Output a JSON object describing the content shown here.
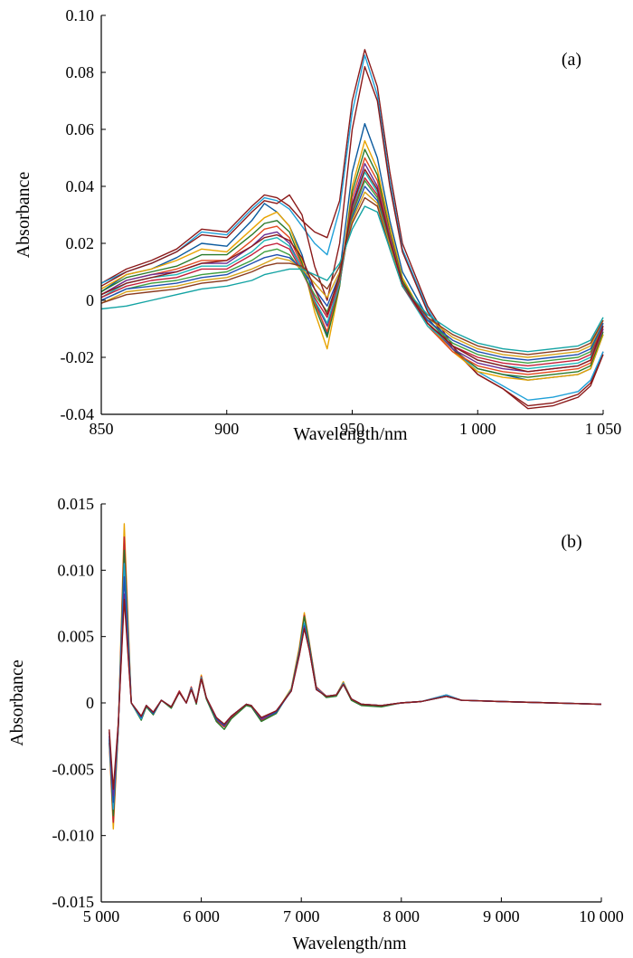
{
  "chart_data": [
    {
      "type": "line",
      "panel_label": "(a)",
      "xlabel": "Wavelength/nm",
      "ylabel": "Absorbance",
      "xlim": [
        850,
        1050
      ],
      "ylim": [
        -0.04,
        0.1
      ],
      "xticks": [
        850,
        900,
        950,
        1000,
        1050
      ],
      "xtick_labels": [
        "850",
        "900",
        "950",
        "1 000",
        "1 050"
      ],
      "yticks": [
        -0.04,
        -0.02,
        0,
        0.02,
        0.04,
        0.06,
        0.08,
        0.1
      ],
      "ytick_labels": [
        "-0.04",
        "-0.02",
        "0",
        "0.02",
        "0.04",
        "0.06",
        "0.08",
        "0.10"
      ],
      "grid": false,
      "legend": "none",
      "x": [
        850,
        860,
        870,
        880,
        890,
        900,
        910,
        915,
        920,
        925,
        930,
        935,
        940,
        945,
        950,
        955,
        960,
        965,
        970,
        980,
        990,
        1000,
        1010,
        1020,
        1030,
        1040,
        1045,
        1050
      ],
      "series": [
        {
          "color": "#8b1a1a",
          "values": [
            0.006,
            0.011,
            0.014,
            0.018,
            0.025,
            0.024,
            0.033,
            0.037,
            0.036,
            0.033,
            0.028,
            0.024,
            0.022,
            0.035,
            0.07,
            0.088,
            0.075,
            0.045,
            0.02,
            -0.002,
            -0.016,
            -0.026,
            -0.031,
            -0.037,
            -0.036,
            -0.033,
            -0.029,
            -0.018
          ]
        },
        {
          "color": "#1fa0d8",
          "values": [
            0.006,
            0.01,
            0.013,
            0.017,
            0.024,
            0.023,
            0.032,
            0.036,
            0.035,
            0.032,
            0.026,
            0.02,
            0.016,
            0.032,
            0.066,
            0.086,
            0.072,
            0.042,
            0.018,
            -0.003,
            -0.017,
            -0.025,
            -0.03,
            -0.035,
            -0.034,
            -0.032,
            -0.028,
            -0.018
          ]
        },
        {
          "color": "#8b1a1a",
          "values": [
            0.005,
            0.01,
            0.013,
            0.017,
            0.023,
            0.022,
            0.031,
            0.035,
            0.034,
            0.037,
            0.03,
            0.012,
            0.0,
            0.02,
            0.06,
            0.082,
            0.07,
            0.04,
            0.017,
            -0.004,
            -0.017,
            -0.026,
            -0.031,
            -0.038,
            -0.037,
            -0.034,
            -0.03,
            -0.019
          ]
        },
        {
          "color": "#0b5a9e",
          "values": [
            0.003,
            0.009,
            0.011,
            0.015,
            0.02,
            0.019,
            0.028,
            0.034,
            0.031,
            0.026,
            0.016,
            0.0,
            -0.012,
            0.01,
            0.045,
            0.062,
            0.05,
            0.028,
            0.01,
            -0.006,
            -0.017,
            -0.024,
            -0.026,
            -0.028,
            -0.027,
            -0.026,
            -0.024,
            -0.012
          ]
        },
        {
          "color": "#e8a300",
          "values": [
            0.004,
            0.009,
            0.011,
            0.014,
            0.018,
            0.017,
            0.025,
            0.029,
            0.031,
            0.026,
            0.014,
            -0.004,
            -0.017,
            0.005,
            0.04,
            0.056,
            0.046,
            0.026,
            0.008,
            -0.008,
            -0.018,
            -0.025,
            -0.027,
            -0.028,
            -0.027,
            -0.026,
            -0.024,
            -0.012
          ]
        },
        {
          "color": "#2b7a2b",
          "values": [
            0.003,
            0.008,
            0.01,
            0.012,
            0.016,
            0.016,
            0.023,
            0.027,
            0.028,
            0.024,
            0.013,
            -0.002,
            -0.013,
            0.005,
            0.038,
            0.053,
            0.044,
            0.024,
            0.007,
            -0.008,
            -0.017,
            -0.024,
            -0.026,
            -0.027,
            -0.026,
            -0.025,
            -0.023,
            -0.011
          ]
        },
        {
          "color": "#e24a1f",
          "values": [
            0.002,
            0.007,
            0.009,
            0.011,
            0.014,
            0.014,
            0.021,
            0.025,
            0.026,
            0.022,
            0.012,
            -0.001,
            -0.011,
            0.006,
            0.036,
            0.05,
            0.042,
            0.023,
            0.006,
            -0.009,
            -0.018,
            -0.023,
            -0.025,
            -0.026,
            -0.025,
            -0.024,
            -0.022,
            -0.01
          ]
        },
        {
          "color": "#6a2c91",
          "values": [
            0.002,
            0.007,
            0.009,
            0.01,
            0.013,
            0.013,
            0.019,
            0.023,
            0.024,
            0.02,
            0.011,
            0.0,
            -0.009,
            0.006,
            0.034,
            0.048,
            0.04,
            0.022,
            0.006,
            -0.008,
            -0.017,
            -0.022,
            -0.024,
            -0.025,
            -0.024,
            -0.023,
            -0.021,
            -0.01
          ]
        },
        {
          "color": "#1fb5b5",
          "values": [
            0.001,
            0.006,
            0.008,
            0.009,
            0.012,
            0.012,
            0.017,
            0.021,
            0.022,
            0.019,
            0.011,
            0.0,
            -0.008,
            0.006,
            0.032,
            0.045,
            0.038,
            0.021,
            0.005,
            -0.009,
            -0.016,
            -0.021,
            -0.023,
            -0.024,
            -0.023,
            -0.022,
            -0.02,
            -0.009
          ]
        },
        {
          "color": "#c21f3a",
          "values": [
            0.001,
            0.005,
            0.007,
            0.008,
            0.011,
            0.011,
            0.016,
            0.019,
            0.02,
            0.018,
            0.01,
            0.001,
            -0.006,
            0.007,
            0.031,
            0.043,
            0.037,
            0.02,
            0.005,
            -0.008,
            -0.016,
            -0.02,
            -0.022,
            -0.023,
            -0.022,
            -0.021,
            -0.019,
            -0.009
          ]
        },
        {
          "color": "#3f9f3f",
          "values": [
            0.0,
            0.004,
            0.006,
            0.007,
            0.009,
            0.01,
            0.014,
            0.017,
            0.018,
            0.016,
            0.01,
            0.002,
            -0.004,
            0.008,
            0.03,
            0.042,
            0.036,
            0.02,
            0.005,
            -0.007,
            -0.015,
            -0.019,
            -0.021,
            -0.022,
            -0.021,
            -0.02,
            -0.018,
            -0.008
          ]
        },
        {
          "color": "#1f4fb0",
          "values": [
            0.0,
            0.004,
            0.005,
            0.006,
            0.008,
            0.009,
            0.013,
            0.015,
            0.016,
            0.015,
            0.011,
            0.004,
            -0.002,
            0.009,
            0.029,
            0.04,
            0.035,
            0.019,
            0.005,
            -0.007,
            -0.014,
            -0.018,
            -0.02,
            -0.021,
            -0.02,
            -0.019,
            -0.017,
            -0.008
          ]
        },
        {
          "color": "#d6a21a",
          "values": [
            -0.001,
            0.003,
            0.004,
            0.005,
            0.007,
            0.008,
            0.011,
            0.013,
            0.015,
            0.014,
            0.011,
            0.006,
            0.001,
            0.01,
            0.028,
            0.038,
            0.034,
            0.019,
            0.005,
            -0.006,
            -0.013,
            -0.017,
            -0.019,
            -0.02,
            -0.019,
            -0.018,
            -0.016,
            -0.007
          ]
        },
        {
          "color": "#8c3c1f",
          "values": [
            -0.001,
            0.002,
            0.003,
            0.004,
            0.006,
            0.007,
            0.01,
            0.012,
            0.013,
            0.013,
            0.012,
            0.008,
            0.004,
            0.012,
            0.027,
            0.036,
            0.033,
            0.018,
            0.005,
            -0.006,
            -0.012,
            -0.016,
            -0.018,
            -0.019,
            -0.018,
            -0.017,
            -0.015,
            -0.007
          ]
        },
        {
          "color": "#13a3a3",
          "values": [
            -0.003,
            -0.002,
            0.0,
            0.002,
            0.004,
            0.005,
            0.007,
            0.009,
            0.01,
            0.011,
            0.011,
            0.009,
            0.007,
            0.013,
            0.025,
            0.033,
            0.031,
            0.018,
            0.005,
            -0.005,
            -0.011,
            -0.015,
            -0.017,
            -0.018,
            -0.017,
            -0.016,
            -0.014,
            -0.006
          ]
        },
        {
          "color": "#8b1a1a",
          "values": [
            0.002,
            0.006,
            0.008,
            0.01,
            0.013,
            0.014,
            0.019,
            0.022,
            0.023,
            0.021,
            0.015,
            0.004,
            -0.005,
            0.009,
            0.033,
            0.046,
            0.039,
            0.021,
            0.006,
            -0.008,
            -0.016,
            -0.021,
            -0.023,
            -0.025,
            -0.024,
            -0.023,
            -0.021,
            -0.009
          ]
        }
      ]
    },
    {
      "type": "line",
      "panel_label": "(b)",
      "xlabel": "Wavelength/nm",
      "ylabel": "Absorbance",
      "xlim": [
        5000,
        10000
      ],
      "ylim": [
        -0.015,
        0.015
      ],
      "xticks": [
        5000,
        6000,
        7000,
        8000,
        9000,
        10000
      ],
      "xtick_labels": [
        "5 000",
        "6 000",
        "7 000",
        "8 000",
        "9 000",
        "10 000"
      ],
      "yticks": [
        -0.015,
        -0.01,
        -0.005,
        0,
        0.005,
        0.01,
        0.015
      ],
      "ytick_labels": [
        "-0.015",
        "-0.010",
        "-0.005",
        "0",
        "0.005",
        "0.010",
        "0.015"
      ],
      "grid": false,
      "legend": "none",
      "x": [
        5080,
        5120,
        5170,
        5230,
        5300,
        5400,
        5450,
        5520,
        5600,
        5700,
        5780,
        5850,
        5900,
        5950,
        6000,
        6050,
        6150,
        6230,
        6300,
        6450,
        6500,
        6600,
        6750,
        6900,
        6980,
        7030,
        7080,
        7150,
        7250,
        7350,
        7420,
        7500,
        7600,
        7800,
        8000,
        8200,
        8450,
        8600,
        9000,
        9500,
        10000
      ],
      "series": [
        {
          "color": "#e8a300",
          "values": [
            -0.003,
            -0.0095,
            -0.002,
            0.0135,
            0.0,
            -0.0012,
            -0.0002,
            -0.0008,
            0.0002,
            -0.0003,
            0.0009,
            0.0,
            0.0012,
            0.0,
            0.0021,
            0.0004,
            -0.0013,
            -0.0018,
            -0.0011,
            -0.0001,
            -0.0002,
            -0.0013,
            -0.0007,
            0.0011,
            0.0042,
            0.0068,
            0.0046,
            0.0012,
            0.0005,
            0.0006,
            0.0016,
            0.0003,
            -0.0001,
            -0.0002,
            0.0,
            0.0001,
            0.0006,
            0.0002,
            0.0001,
            0.0,
            -0.0001
          ]
        },
        {
          "color": "#c21f3a",
          "values": [
            -0.003,
            -0.009,
            -0.002,
            0.0125,
            0.0,
            -0.0012,
            -0.0002,
            -0.0008,
            0.0002,
            -0.0003,
            0.0009,
            0.0,
            0.0012,
            0.0,
            0.002,
            0.0004,
            -0.0013,
            -0.0018,
            -0.0011,
            -0.0001,
            -0.0002,
            -0.0013,
            -0.0007,
            0.001,
            0.004,
            0.0066,
            0.0045,
            0.0012,
            0.0005,
            0.0006,
            0.0015,
            0.0003,
            -0.0001,
            -0.0002,
            0.0,
            0.0001,
            0.0006,
            0.0002,
            0.0001,
            0.0,
            -0.0001
          ]
        },
        {
          "color": "#2b7a2b",
          "values": [
            -0.0028,
            -0.0085,
            -0.0019,
            0.0115,
            0.0,
            -0.0013,
            -0.0003,
            -0.0009,
            0.0002,
            -0.0004,
            0.0008,
            0.0,
            0.0011,
            -0.0001,
            0.0019,
            0.0003,
            -0.0014,
            -0.002,
            -0.0012,
            -0.0002,
            -0.0003,
            -0.0014,
            -0.0008,
            0.001,
            0.0039,
            0.0065,
            0.0044,
            0.0011,
            0.0004,
            0.0005,
            0.0014,
            0.0002,
            -0.0002,
            -0.0003,
            0.0,
            0.0001,
            0.0005,
            0.0002,
            0.0001,
            0.0,
            -0.0001
          ]
        },
        {
          "color": "#1fa0d8",
          "values": [
            -0.0027,
            -0.008,
            -0.0018,
            0.0105,
            0.0,
            -0.0012,
            -0.0002,
            -0.0008,
            0.0002,
            -0.0003,
            0.0008,
            0.0,
            0.0011,
            0.0,
            0.0019,
            0.0004,
            -0.0012,
            -0.0017,
            -0.001,
            -0.0001,
            -0.0002,
            -0.0012,
            -0.0007,
            0.001,
            0.0038,
            0.006,
            0.0042,
            0.0011,
            0.0005,
            0.0006,
            0.0015,
            0.0003,
            -0.0001,
            -0.0002,
            0.0,
            0.0001,
            0.0006,
            0.0002,
            0.0001,
            0.0,
            -0.0001
          ]
        },
        {
          "color": "#1f4fb0",
          "values": [
            -0.0025,
            -0.0075,
            -0.0017,
            0.0095,
            0.0,
            -0.0011,
            -0.0002,
            -0.0008,
            0.0002,
            -0.0003,
            0.0008,
            0.0,
            0.001,
            0.0,
            0.0018,
            0.0004,
            -0.0012,
            -0.0017,
            -0.001,
            -0.0001,
            -0.0002,
            -0.0012,
            -0.0007,
            0.0009,
            0.0037,
            0.0058,
            0.0041,
            0.001,
            0.0005,
            0.0006,
            0.0014,
            0.0003,
            -0.0001,
            -0.0002,
            0.0,
            0.0001,
            0.0005,
            0.0002,
            0.0001,
            0.0,
            -0.0001
          ]
        },
        {
          "color": "#6a2c91",
          "values": [
            -0.0022,
            -0.007,
            -0.0016,
            0.0082,
            0.0,
            -0.001,
            -0.0002,
            -0.0007,
            0.0002,
            -0.0003,
            0.0008,
            0.0,
            0.001,
            0.0,
            0.0018,
            0.0004,
            -0.0011,
            -0.0016,
            -0.001,
            -0.0001,
            -0.0002,
            -0.0012,
            -0.0006,
            0.0009,
            0.0036,
            0.0057,
            0.004,
            0.001,
            0.0005,
            0.0006,
            0.0014,
            0.0003,
            -0.0001,
            -0.0002,
            0.0,
            0.0001,
            0.0005,
            0.0002,
            0.0001,
            0.0,
            -0.0001
          ]
        },
        {
          "color": "#8b1a1a",
          "values": [
            -0.002,
            -0.0065,
            -0.0015,
            0.0078,
            0.0,
            -0.001,
            -0.0002,
            -0.0007,
            0.0002,
            -0.0003,
            0.0008,
            0.0,
            0.001,
            0.0,
            0.0018,
            0.0004,
            -0.0011,
            -0.0016,
            -0.001,
            -0.0001,
            -0.0002,
            -0.0011,
            -0.0006,
            0.0009,
            0.0036,
            0.0056,
            0.004,
            0.001,
            0.0005,
            0.0006,
            0.0014,
            0.0003,
            -0.0001,
            -0.0002,
            0.0,
            0.0001,
            0.0005,
            0.0002,
            0.0001,
            0.0,
            -0.0001
          ]
        }
      ]
    }
  ]
}
